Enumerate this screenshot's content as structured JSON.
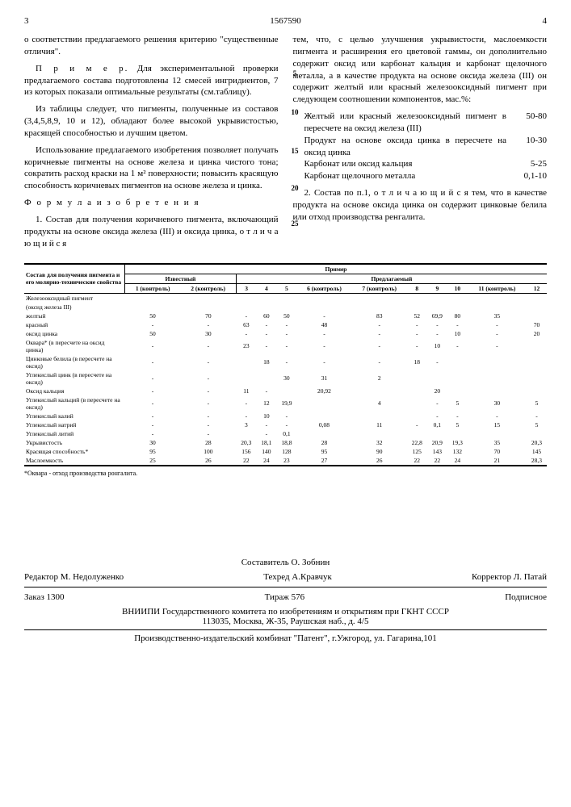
{
  "header": {
    "page_left": "3",
    "patent": "1567590",
    "page_right": "4"
  },
  "left_col": {
    "p1": "о соответствии предлагаемого решения критерию \"существенные отличия\".",
    "p2_label": "П р и м е р.",
    "p2": " Для экспериментальной проверки предлагаемого состава подготовлены 12 смесей ингридиентов, 7 из которых показали оптимальные результаты (см.таблицу).",
    "p3": "Из таблицы следует, что пигменты, полученные из составов (3,4,5,8,9, 10 и 12), обладают более высокой укрывистостью, красящей способностью и лучшим цветом.",
    "p4": "Использование предлагаемого изобретения позволяет получать коричневые пигменты на основе железа и цинка чистого тона; сократить расход краски на 1 м² поверхности; повысить красящую способность коричневых пигментов на основе железа и цинка.",
    "formula_title": "Ф о р м у л а   и з о б р е т е н и я",
    "claim1": "1. Состав для получения коричневого пигмента, включающий продукты на основе оксида железа (III) и оксида цинка, о т л и ч а ю щ и й с я"
  },
  "right_col": {
    "p1": "тем, что, с целью улучшения укрывистости, маслоемкости пигмента и расширения его цветовой гаммы, он дополнительно содержит оксид или карбонат кальция и карбонат щелочного металла, а в качестве продукта на основе оксида железа (III) он содержит желтый или красный железооксидный пигмент при следующем соотношении компонентов, мас.%:",
    "components": [
      {
        "label": "Желтый или красный железооксидный пигмент в пересчете на оксид железа (III)",
        "val": "50-80"
      },
      {
        "label": "Продукт на основе оксида цинка в пересчете на оксид цинка",
        "val": "10-30"
      },
      {
        "label": "Карбонат или оксид кальция",
        "val": "5-25"
      },
      {
        "label": "Карбонат щелочного металла",
        "val": "0,1-10"
      }
    ],
    "claim2": "2. Состав по п.1, о т л и ч а ю щ и й с я  тем, что в качестве продукта на основе оксида цинка он содержит цинковые белила или отход производства ренгалита."
  },
  "line_nums": [
    "5",
    "10",
    "15",
    "20",
    "25"
  ],
  "table": {
    "group_header_left": "Состав для получения пигмента и его молярно-технические свойства",
    "group_header_right": "Пример",
    "sub_left": "Известный",
    "sub_right": "Предлагаемый",
    "cols": [
      "1 (контроль)",
      "2 (контроль)",
      "3",
      "4",
      "5",
      "6 (контроль)",
      "7 (контроль)",
      "8",
      "9",
      "10",
      "11 (контроль)",
      "12"
    ],
    "rows": [
      {
        "label": "Железооксидный пигмент",
        "vals": [
          "",
          "",
          "",
          "",
          "",
          "",
          "",
          "",
          "",
          "",
          "",
          ""
        ]
      },
      {
        "label": "(оксид железа III)",
        "vals": [
          "",
          "",
          "",
          "",
          "",
          "",
          "",
          "",
          "",
          "",
          "",
          ""
        ]
      },
      {
        "label": "желтый",
        "vals": [
          "50",
          "70",
          "-",
          "60",
          "50",
          "-",
          "83",
          "52",
          "69,9",
          "80",
          "35",
          ""
        ]
      },
      {
        "label": "красный",
        "vals": [
          "-",
          "-",
          "63",
          "-",
          "-",
          "48",
          "-",
          "-",
          "-",
          "-",
          "-",
          "70"
        ]
      },
      {
        "label": "оксид цинка",
        "vals": [
          "50",
          "30",
          "-",
          "-",
          "-",
          "-",
          "-",
          "-",
          "-",
          "10",
          "-",
          "20"
        ]
      },
      {
        "label": "Оквара* (в пересчете на оксид цинка)",
        "vals": [
          "-",
          "-",
          "23",
          "-",
          "-",
          "-",
          "-",
          "-",
          "10",
          "-",
          "-",
          ""
        ]
      },
      {
        "label": "Цинковые белила (в пересчете на оксид)",
        "vals": [
          "-",
          "-",
          "",
          "18",
          "-",
          "-",
          "-",
          "18",
          "-",
          "",
          "",
          ""
        ]
      },
      {
        "label": "Углекислый цинк (в пересчете на оксид)",
        "vals": [
          "-",
          "-",
          "",
          "",
          "30",
          "31",
          "2",
          "",
          "",
          "",
          "",
          ""
        ]
      },
      {
        "label": "Оксид кальция",
        "vals": [
          "-",
          "-",
          "11",
          "-",
          "",
          "20,92",
          "",
          "",
          "20",
          "",
          "",
          ""
        ]
      },
      {
        "label": "Углекислый кальций (в пересчете на оксид)",
        "vals": [
          "-",
          "-",
          "-",
          "12",
          "19,9",
          "",
          "4",
          "",
          "-",
          "5",
          "30",
          "5"
        ]
      },
      {
        "label": "Углекислый калий",
        "vals": [
          "-",
          "-",
          "-",
          "10",
          "-",
          "",
          "",
          "",
          "-",
          "-",
          "-",
          "-"
        ]
      },
      {
        "label": "Углекислый натрий",
        "vals": [
          "-",
          "-",
          "3",
          "-",
          "-",
          "0,08",
          "11",
          "-",
          "0,1",
          "5",
          "15",
          "5"
        ]
      },
      {
        "label": "Углекислый литий",
        "vals": [
          "-",
          "-",
          "",
          "-",
          "0,1",
          "",
          "",
          "",
          "",
          "",
          "",
          ""
        ]
      },
      {
        "label": "Укрывистость",
        "vals": [
          "30",
          "28",
          "20,3",
          "18,1",
          "18,8",
          "28",
          "32",
          "22,8",
          "20,9",
          "19,3",
          "35",
          "20,3"
        ]
      },
      {
        "label": "Красящая способность*",
        "vals": [
          "95",
          "100",
          "156",
          "140",
          "128",
          "95",
          "90",
          "125",
          "143",
          "132",
          "70",
          "145"
        ]
      },
      {
        "label": "Маслоемкость",
        "vals": [
          "25",
          "26",
          "22",
          "24",
          "23",
          "27",
          "26",
          "22",
          "22",
          "24",
          "21",
          "28,3"
        ]
      }
    ],
    "footnote": "*Оквара - отход производства ронгалита."
  },
  "footer": {
    "compiler": "Составитель О. Зобнин",
    "editor": "Редактор М. Недолуженко",
    "techred": "Техред А.Кравчук",
    "corrector": "Корректор Л. Патай",
    "order": "Заказ 1300",
    "tirazh": "Тираж 576",
    "sign": "Подписное",
    "org": "ВНИИПИ Государственного комитета по изобретениям и открытиям при ГКНТ СССР",
    "addr": "113035, Москва, Ж-35, Раушская наб., д. 4/5",
    "pub": "Производственно-издательский комбинат \"Патент\", г.Ужгород, ул. Гагарина,101"
  }
}
